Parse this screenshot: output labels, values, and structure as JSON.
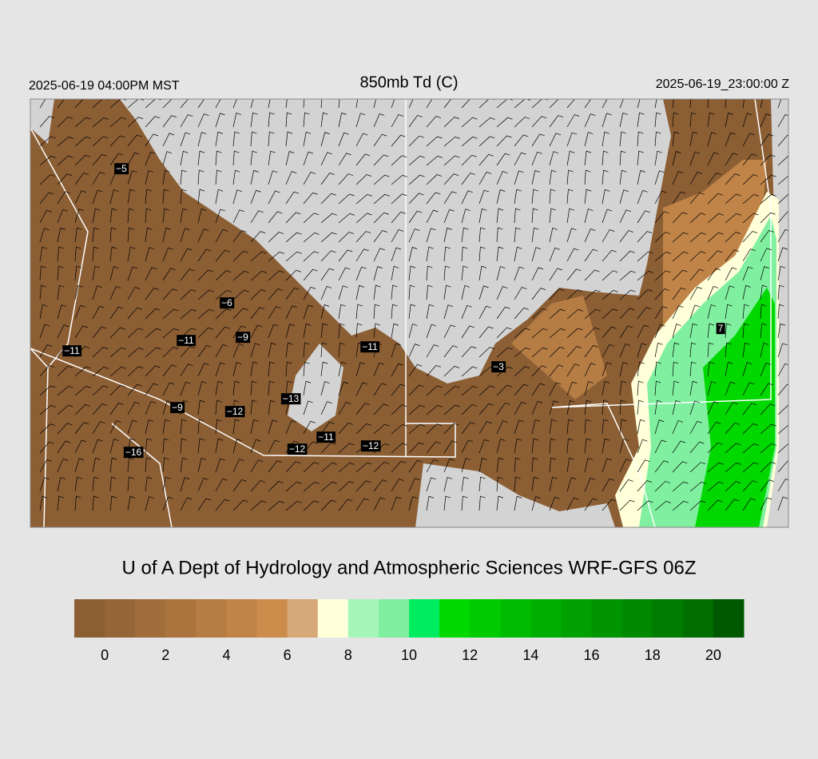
{
  "header": {
    "left": "2025-06-19 04:00PM MST",
    "title": "850mb Td (C)",
    "right": "2025-06-19_23:00:00 Z"
  },
  "stations": [
    "−5",
    "−6",
    "−9",
    "−11",
    "−11",
    "−11",
    "−3",
    "7",
    "−13",
    "−9",
    "−12",
    "−11",
    "−12",
    "−12",
    "−16"
  ],
  "credit": "U of A Dept of Hydrology and Atmospheric Sciences WRF-GFS 06Z",
  "colorbar": {
    "range": [
      -1,
      21
    ],
    "colors": [
      "#8b5e34",
      "#966537",
      "#a06d3b",
      "#ab743f",
      "#b57c44",
      "#c08448",
      "#cb8c4c",
      "#d6a878",
      "#ffffd9",
      "#a6f5b8",
      "#80f0a0",
      "#00ec60",
      "#00d800",
      "#00ca00",
      "#00bc00",
      "#00ae00",
      "#00a000",
      "#009400",
      "#008800",
      "#007c00",
      "#006e00",
      "#005800"
    ],
    "ticks": [
      0,
      2,
      4,
      6,
      8,
      10,
      12,
      14,
      16,
      18,
      20
    ]
  }
}
